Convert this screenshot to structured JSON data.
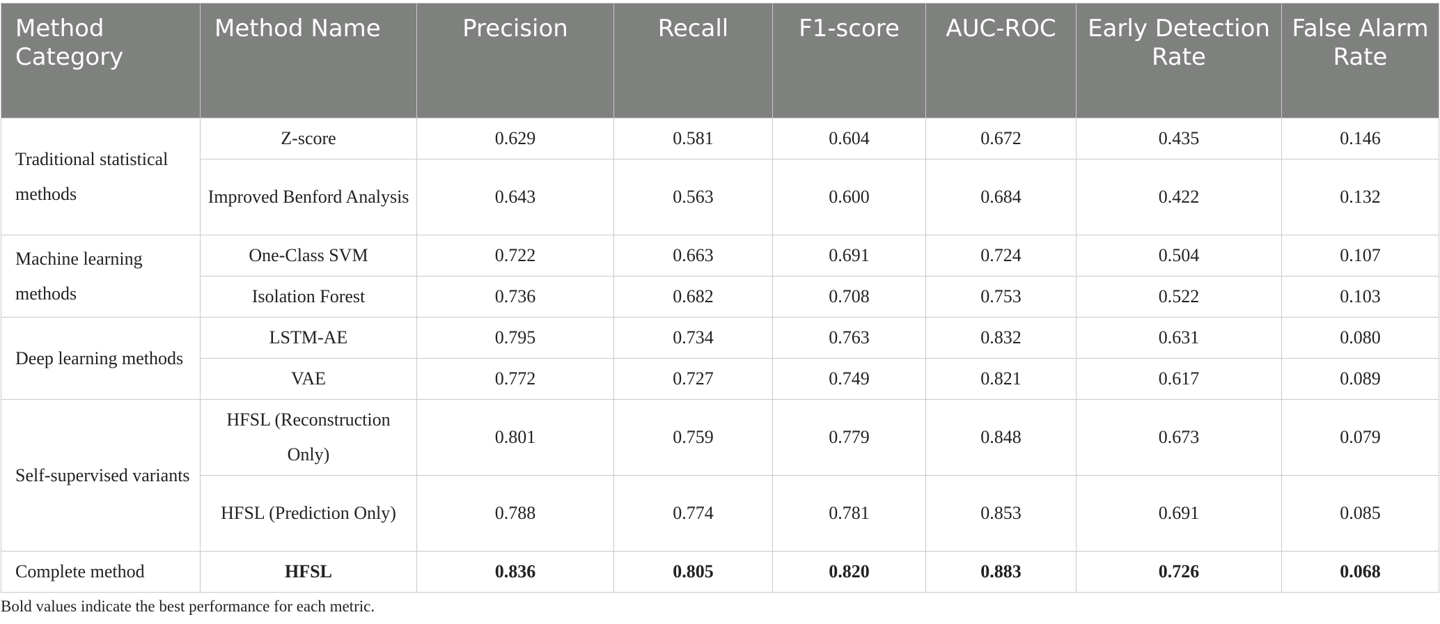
{
  "headers": [
    "Method Category",
    "Method Name",
    "Precision",
    "Recall",
    "F1-score",
    "AUC-ROC",
    "Early Detection Rate",
    "False Alarm Rate"
  ],
  "categories": {
    "traditional": "Traditional statistical methods",
    "ml": "Machine learning methods",
    "dl": "Deep learning methods",
    "ss": "Self-supervised variants",
    "complete": "Complete method"
  },
  "rows": [
    {
      "name": "Z-score",
      "values": [
        "0.629",
        "0.581",
        "0.604",
        "0.672",
        "0.435",
        "0.146"
      ]
    },
    {
      "name": "Improved Benford Analysis",
      "values": [
        "0.643",
        "0.563",
        "0.600",
        "0.684",
        "0.422",
        "0.132"
      ]
    },
    {
      "name": "One-Class SVM",
      "values": [
        "0.722",
        "0.663",
        "0.691",
        "0.724",
        "0.504",
        "0.107"
      ]
    },
    {
      "name": "Isolation Forest",
      "values": [
        "0.736",
        "0.682",
        "0.708",
        "0.753",
        "0.522",
        "0.103"
      ]
    },
    {
      "name": "LSTM-AE",
      "values": [
        "0.795",
        "0.734",
        "0.763",
        "0.832",
        "0.631",
        "0.080"
      ]
    },
    {
      "name": "VAE",
      "values": [
        "0.772",
        "0.727",
        "0.749",
        "0.821",
        "0.617",
        "0.089"
      ]
    },
    {
      "name": "HFSL (Reconstruction Only)",
      "values": [
        "0.801",
        "0.759",
        "0.779",
        "0.848",
        "0.673",
        "0.079"
      ]
    },
    {
      "name": "HFSL (Prediction Only)",
      "values": [
        "0.788",
        "0.774",
        "0.781",
        "0.853",
        "0.691",
        "0.085"
      ]
    },
    {
      "name": "HFSL",
      "values": [
        "0.836",
        "0.805",
        "0.820",
        "0.883",
        "0.726",
        "0.068"
      ],
      "bold": true
    }
  ],
  "footnote": "Bold values indicate the best performance for each metric."
}
